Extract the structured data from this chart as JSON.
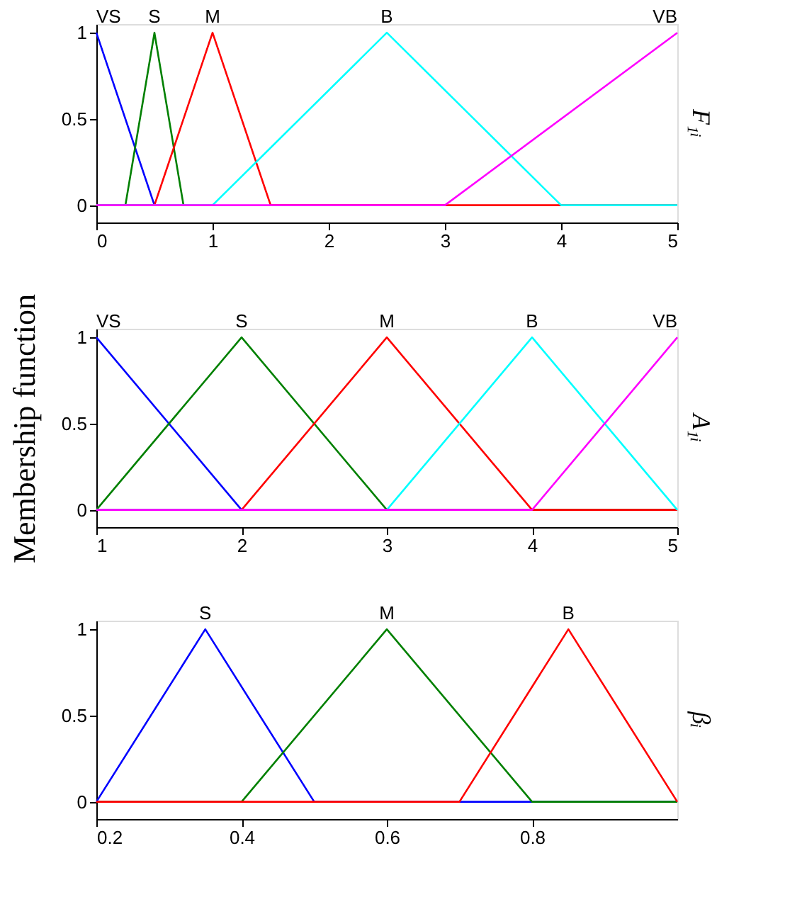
{
  "chart_data": [
    {
      "type": "line",
      "y2label": "F₁ᵢ",
      "xlim": [
        0,
        5
      ],
      "xticks": [
        0,
        1,
        2,
        3,
        4,
        5
      ],
      "ylim": [
        -0.1,
        1.05
      ],
      "yticks": [
        0,
        0.5,
        1
      ],
      "grid": false,
      "series": [
        {
          "name": "VS",
          "color": "#0000ff",
          "x": [
            0,
            0.5
          ],
          "values": [
            1,
            0
          ]
        },
        {
          "name": "S",
          "color": "#008000",
          "x": [
            0.25,
            0.5,
            0.75
          ],
          "values": [
            0,
            1,
            0
          ]
        },
        {
          "name": "M",
          "color": "#ff0000",
          "x": [
            0,
            0.5,
            1,
            1.5,
            5
          ],
          "values": [
            0,
            0,
            1,
            0,
            0
          ]
        },
        {
          "name": "B",
          "color": "#00ffff",
          "x": [
            0,
            1,
            2.5,
            4,
            5
          ],
          "values": [
            0,
            0,
            1,
            0,
            0
          ]
        },
        {
          "name": "VB",
          "color": "#ff00ff",
          "x": [
            0,
            3,
            5
          ],
          "values": [
            0,
            0,
            1
          ]
        }
      ]
    },
    {
      "type": "line",
      "ylabel": "Membership function",
      "y2label": "A₁ᵢ",
      "xlim": [
        1,
        5
      ],
      "xticks": [
        1,
        2,
        3,
        4,
        5
      ],
      "ylim": [
        -0.1,
        1.05
      ],
      "yticks": [
        0,
        0.5,
        1
      ],
      "grid": false,
      "series": [
        {
          "name": "VS",
          "color": "#0000ff",
          "x": [
            1,
            2
          ],
          "values": [
            1,
            0
          ]
        },
        {
          "name": "S",
          "color": "#008000",
          "x": [
            1,
            2,
            3,
            5
          ],
          "values": [
            0,
            1,
            0,
            0
          ]
        },
        {
          "name": "M",
          "color": "#ff0000",
          "x": [
            1,
            2,
            3,
            4,
            5
          ],
          "values": [
            0,
            0,
            1,
            0,
            0
          ]
        },
        {
          "name": "B",
          "color": "#00ffff",
          "x": [
            1,
            3,
            4,
            5
          ],
          "values": [
            0,
            0,
            1,
            0
          ]
        },
        {
          "name": "VB",
          "color": "#ff00ff",
          "x": [
            1,
            4,
            5
          ],
          "values": [
            0,
            0,
            1
          ]
        }
      ]
    },
    {
      "type": "line",
      "y2label": "βᵢ",
      "xlim": [
        0.2,
        1.0
      ],
      "xticks": [
        0.2,
        0.4,
        0.6,
        0.8
      ],
      "ylim": [
        -0.1,
        1.05
      ],
      "yticks": [
        0,
        0.5,
        1
      ],
      "grid": false,
      "series": [
        {
          "name": "S",
          "color": "#0000ff",
          "x": [
            0.2,
            0.35,
            0.5,
            1.0
          ],
          "values": [
            0,
            1,
            0,
            0
          ]
        },
        {
          "name": "M",
          "color": "#008000",
          "x": [
            0.2,
            0.4,
            0.6,
            0.8,
            1.0
          ],
          "values": [
            0,
            0,
            1,
            0,
            0
          ]
        },
        {
          "name": "B",
          "color": "#ff0000",
          "x": [
            0.2,
            0.7,
            0.85,
            1.0
          ],
          "values": [
            0,
            0,
            1,
            0
          ]
        }
      ]
    }
  ]
}
